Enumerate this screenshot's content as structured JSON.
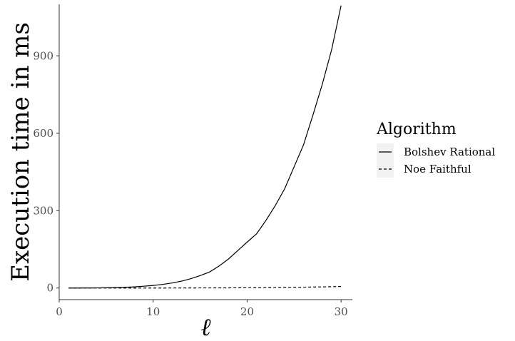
{
  "chart_data": {
    "type": "line",
    "title": "",
    "xlabel": "ℓ",
    "ylabel": "Execution time in ms",
    "xlim": [
      0,
      31.2
    ],
    "ylim": [
      -45,
      1100
    ],
    "x_ticks": [
      0,
      10,
      20,
      30
    ],
    "y_ticks": [
      0,
      300,
      600,
      900
    ],
    "grid": false,
    "legend": {
      "title": "Algorithm",
      "position": "right"
    },
    "x": [
      1,
      2,
      3,
      4,
      5,
      6,
      7,
      8,
      9,
      10,
      11,
      12,
      13,
      14,
      15,
      16,
      17,
      18,
      19,
      20,
      21,
      22,
      23,
      24,
      25,
      26,
      27,
      28,
      29,
      30
    ],
    "series": [
      {
        "name": "Bolshev Rational",
        "line_style": "solid",
        "values": [
          0,
          0,
          0.2,
          0.5,
          1,
          1.7,
          2.8,
          4.5,
          7,
          10,
          14,
          19.5,
          26.5,
          36,
          48,
          62,
          85,
          112,
          145,
          178,
          210,
          262,
          320,
          385,
          470,
          555,
          670,
          790,
          925,
          1095
        ]
      },
      {
        "name": "Noe Faithful",
        "line_style": "dashed",
        "values": [
          0,
          0,
          0,
          0,
          0,
          0,
          0,
          0,
          0,
          0,
          0,
          0.1,
          0.2,
          0.3,
          0.4,
          0.5,
          0.6,
          0.7,
          0.9,
          1.1,
          1.3,
          1.6,
          1.9,
          2.3,
          2.7,
          3.2,
          3.8,
          4.4,
          5.1,
          6
        ]
      }
    ]
  }
}
